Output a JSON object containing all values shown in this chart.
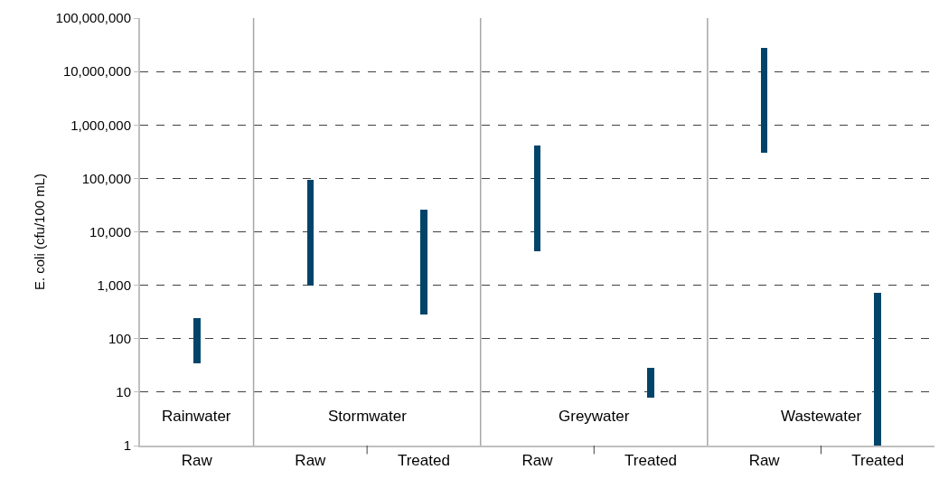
{
  "chart_data": {
    "type": "bar",
    "ylabel": "E. coli (cfu/100 mL)",
    "categories": [
      "Raw",
      "Raw",
      "Treated",
      "Raw",
      "Treated",
      "Raw",
      "Treated"
    ],
    "base": [
      34,
      1000,
      280,
      4400,
      8,
      300000,
      1
    ],
    "values": [
      206,
      94000,
      25720,
      405600,
      20,
      27700000,
      709
    ],
    "color": "#00446a",
    "log": "y",
    "grid": "y",
    "ylim": [
      1,
      100000000
    ],
    "yticks": [
      {
        "value": 1,
        "label": "1"
      },
      {
        "value": 10,
        "label": "10"
      },
      {
        "value": 100,
        "label": "100"
      },
      {
        "value": 1000,
        "label": "1,000"
      },
      {
        "value": 10000,
        "label": "10,000"
      },
      {
        "value": 100000,
        "label": "100,000"
      },
      {
        "value": 1000000,
        "label": "1,000,000"
      },
      {
        "value": 10000000,
        "label": "10,000,000"
      },
      {
        "value": 100000000,
        "label": "100,000,000"
      }
    ],
    "annotations": [
      "Rainwater",
      "Stormwater",
      "Greywater",
      "Wastewater"
    ]
  }
}
